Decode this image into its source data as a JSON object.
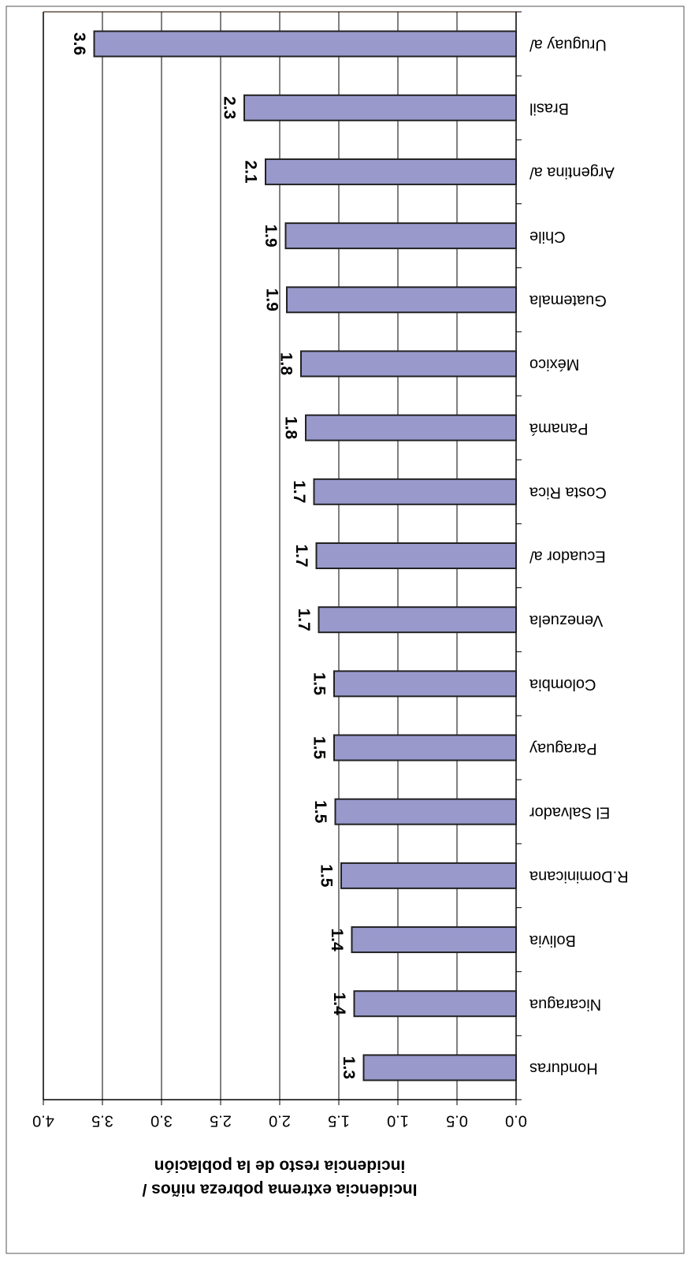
{
  "chart_data": {
    "type": "bar",
    "ylabel": [
      "Incidencia extrema pobreza niños /",
      "incidencia resto de la población"
    ],
    "categories": [
      "Honduras",
      "Nicaragua",
      "Bolivia",
      "R.Dominicana",
      "El Salvador",
      "Paraguay",
      "Colombia",
      "Venezuela",
      "Ecuador a/",
      "Costa Rica",
      "Panamá",
      "México",
      "Guatemala",
      "Chile",
      "Argentina a/",
      "Brasil",
      "Uruguay a/"
    ],
    "values": [
      1.29,
      1.37,
      1.39,
      1.48,
      1.53,
      1.54,
      1.54,
      1.67,
      1.69,
      1.71,
      1.78,
      1.82,
      1.94,
      1.95,
      2.12,
      2.3,
      3.57
    ],
    "value_labels": [
      "1.3",
      "1.4",
      "1.4",
      "1.5",
      "1.5",
      "1.5",
      "1.5",
      "1.7",
      "1.7",
      "1.7",
      "1.8",
      "1.8",
      "1.9",
      "1.9",
      "2.1",
      "2.3",
      "3.6"
    ],
    "color": "#9999cc",
    "ylim": [
      0,
      4
    ],
    "yticks": [
      {
        "value": 0,
        "label": "0.0"
      },
      {
        "value": 0.5,
        "label": "0.5"
      },
      {
        "value": 1,
        "label": "1.0"
      },
      {
        "value": 1.5,
        "label": "1.5"
      },
      {
        "value": 2,
        "label": "2.0"
      },
      {
        "value": 2.5,
        "label": "2.5"
      },
      {
        "value": 3,
        "label": "3.0"
      },
      {
        "value": 3.5,
        "label": "3.5"
      },
      {
        "value": 4,
        "label": "4.0"
      }
    ],
    "grid": true
  }
}
